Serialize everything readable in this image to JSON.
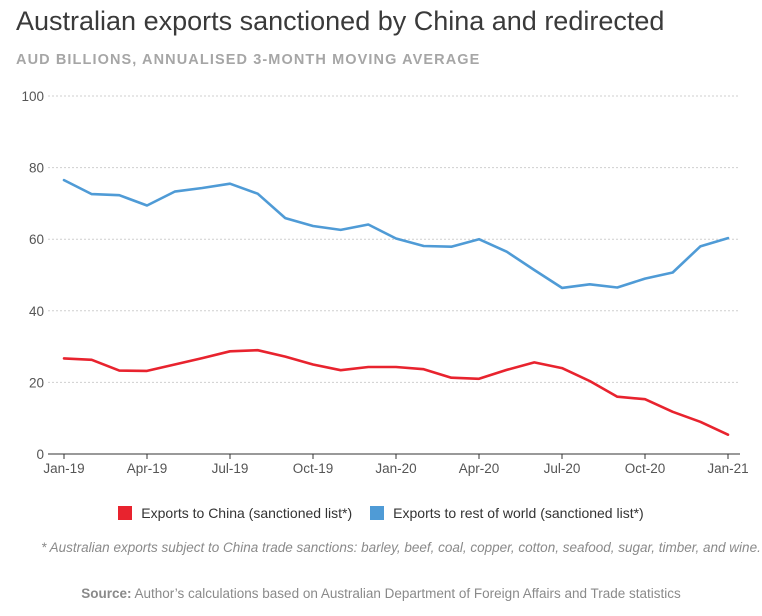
{
  "title": "Australian exports sanctioned by China and redirected",
  "subtitle": "AUD BILLIONS, ANNUALISED 3-MONTH MOVING AVERAGE",
  "footnote": "* Australian exports subject to China trade sanctions: barley, beef, coal, copper, cotton, seafood, sugar, timber, and wine.",
  "source_label": "Source:",
  "source_text": " Author’s calculations based on Australian Department of Foreign Affairs and Trade statistics",
  "colors": {
    "china": "#e8232e",
    "row": "#4f9bd6",
    "grid": "#cfcfcf",
    "axis": "#555555"
  },
  "chart_data": {
    "type": "line",
    "title": "Australian exports sanctioned by China and redirected",
    "subtitle": "AUD BILLIONS, ANNUALISED 3-MONTH MOVING AVERAGE",
    "xlabel": "",
    "ylabel": "",
    "ylim": [
      0,
      100
    ],
    "yticks": [
      "0",
      "20",
      "40",
      "60",
      "80",
      "100"
    ],
    "xticks": [
      "Jan-19",
      "Apr-19",
      "Jul-19",
      "Oct-19",
      "Jan-20",
      "Apr-20",
      "Jul-20",
      "Oct-20",
      "Jan-21"
    ],
    "grid": true,
    "legend_position": "bottom",
    "x": [
      "Jan-19",
      "Feb-19",
      "Mar-19",
      "Apr-19",
      "May-19",
      "Jun-19",
      "Jul-19",
      "Aug-19",
      "Sep-19",
      "Oct-19",
      "Nov-19",
      "Dec-19",
      "Jan-20",
      "Feb-20",
      "Mar-20",
      "Apr-20",
      "May-20",
      "Jun-20",
      "Jul-20",
      "Aug-20",
      "Sep-20",
      "Oct-20",
      "Nov-20",
      "Dec-20",
      "Jan-21"
    ],
    "series": [
      {
        "name": "Exports to China (sanctioned list*)",
        "color": "#e8232e",
        "values": [
          26.7,
          26.3,
          23.3,
          23.2,
          25.0,
          26.8,
          28.7,
          29.0,
          27.2,
          25.0,
          23.4,
          24.3,
          24.3,
          23.7,
          21.3,
          21.0,
          23.5,
          25.6,
          24.0,
          20.4,
          16.0,
          15.3,
          11.8,
          9.0,
          5.4
        ]
      },
      {
        "name": "Exports to rest of world (sanctioned list*)",
        "color": "#4f9bd6",
        "values": [
          76.5,
          72.6,
          72.3,
          69.4,
          73.3,
          74.3,
          75.5,
          72.7,
          65.9,
          63.7,
          62.6,
          64.1,
          60.2,
          58.1,
          57.9,
          60.0,
          56.5,
          51.4,
          46.4,
          47.4,
          46.5,
          49.0,
          50.7,
          58.0,
          60.3
        ]
      }
    ]
  }
}
